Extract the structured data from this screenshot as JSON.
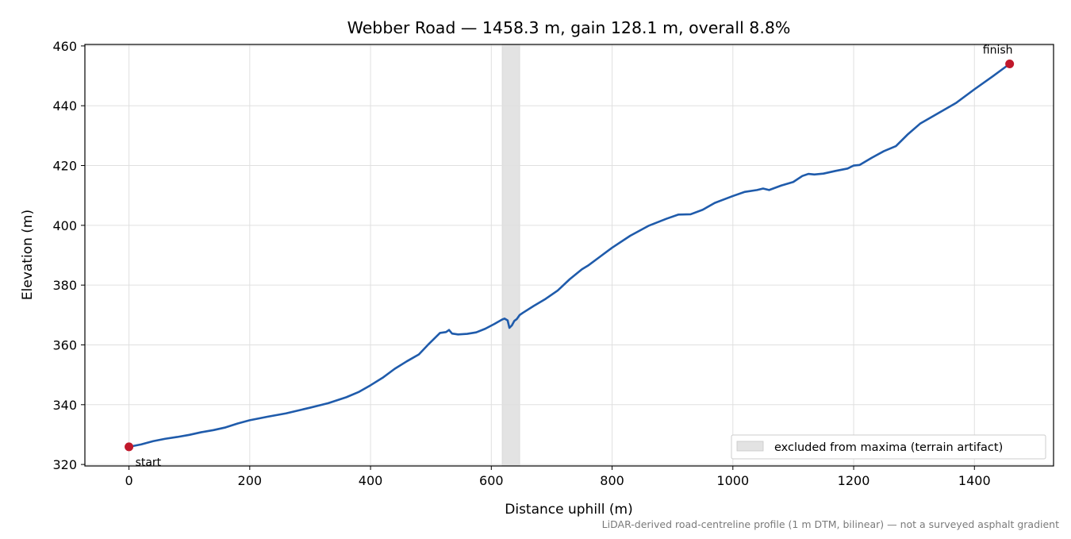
{
  "chart_data": {
    "type": "line",
    "title": "Webber Road — 1458.3 m, gain 128.1 m, overall 8.8%",
    "xlabel": "Distance uphill (m)",
    "ylabel": "Elevation (m)",
    "xlim": [
      -73,
      1531
    ],
    "ylim": [
      319.5,
      460.5
    ],
    "xticks": [
      0,
      200,
      400,
      600,
      800,
      1000,
      1200,
      1400
    ],
    "yticks": [
      320,
      340,
      360,
      380,
      400,
      420,
      440,
      460
    ],
    "grid": true,
    "legend": {
      "position": "lower-right",
      "entries": [
        "excluded from maxima (terrain artifact)"
      ]
    },
    "excluded_region": {
      "x_start": 618,
      "x_end": 647,
      "label": "excluded from maxima (terrain artifact)"
    },
    "footnote": "LiDAR-derived road-centreline profile (1 m DTM, bilinear) — not a surveyed asphalt gradient",
    "colors": {
      "line": "#1f5bab",
      "markers": "#c0182b",
      "excluded": "#e3e3e3",
      "grid": "#e0e0e0"
    },
    "annotations": [
      {
        "text": "start",
        "x": 0,
        "y": 325.9
      },
      {
        "text": "finish",
        "x": 1458.3,
        "y": 454.0
      }
    ],
    "series": [
      {
        "x": [
          0,
          20,
          40,
          60,
          80,
          100,
          120,
          140,
          160,
          180,
          200,
          230,
          260,
          300,
          330,
          360,
          380,
          400,
          420,
          440,
          460,
          480,
          495,
          505,
          515,
          525,
          530,
          535,
          545,
          560,
          575,
          590,
          605,
          618,
          622,
          627,
          630,
          634,
          638,
          642,
          647,
          652,
          670,
          690,
          710,
          730,
          750,
          760,
          780,
          800,
          830,
          860,
          890,
          910,
          930,
          950,
          970,
          1000,
          1020,
          1040,
          1050,
          1060,
          1080,
          1100,
          1115,
          1125,
          1135,
          1150,
          1170,
          1190,
          1200,
          1210,
          1230,
          1250,
          1270,
          1290,
          1310,
          1340,
          1370,
          1400,
          1430,
          1458.3
        ],
        "y": [
          325.9,
          326.7,
          327.8,
          328.6,
          329.2,
          329.9,
          330.8,
          331.5,
          332.4,
          333.7,
          334.8,
          336.0,
          337.1,
          339.0,
          340.5,
          342.5,
          344.2,
          346.5,
          349.0,
          352.0,
          354.5,
          356.8,
          360.0,
          362.0,
          364.0,
          364.3,
          365.0,
          363.8,
          363.5,
          363.7,
          364.2,
          365.4,
          367.0,
          368.5,
          368.8,
          368.2,
          365.7,
          366.5,
          368.0,
          368.6,
          370.0,
          370.7,
          373.0,
          375.4,
          378.2,
          382.0,
          385.3,
          386.5,
          389.5,
          392.5,
          396.5,
          399.8,
          402.2,
          403.6,
          403.7,
          405.2,
          407.5,
          409.8,
          411.2,
          411.8,
          412.3,
          411.8,
          413.3,
          414.5,
          416.5,
          417.2,
          417.0,
          417.3,
          418.2,
          419.0,
          420.0,
          420.2,
          422.6,
          424.8,
          426.5,
          430.5,
          434.0,
          437.5,
          441.0,
          445.5,
          449.8,
          454.0
        ]
      }
    ]
  }
}
